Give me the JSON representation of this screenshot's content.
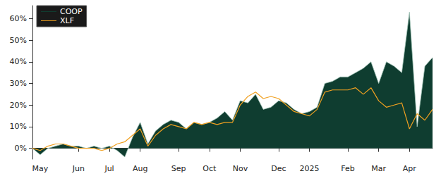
{
  "chart_data": {
    "type": "line",
    "categories": [
      null,
      "May",
      null,
      null,
      null,
      null,
      "Jun",
      null,
      null,
      null,
      "Jul",
      null,
      null,
      null,
      "Aug",
      null,
      null,
      null,
      null,
      "Sep",
      null,
      null,
      null,
      "Oct",
      null,
      null,
      null,
      "Nov",
      null,
      null,
      null,
      null,
      "Dec",
      null,
      null,
      null,
      "2025",
      null,
      null,
      null,
      null,
      "Feb",
      null,
      null,
      null,
      "Mar",
      null,
      null,
      null,
      "Apr",
      null,
      null,
      null
    ],
    "series": [
      {
        "name": "COOP",
        "color": "#0f3d30",
        "type": "area",
        "values": [
          0,
          -3,
          0,
          1,
          2,
          1,
          1,
          0,
          1,
          0,
          1,
          -1,
          -4,
          5,
          12,
          2,
          8,
          11,
          13,
          12,
          9,
          12,
          11,
          12,
          14,
          17,
          13,
          22,
          21,
          25,
          18,
          19,
          22,
          21,
          18,
          16,
          17,
          19,
          30,
          31,
          33,
          33,
          35,
          37,
          40,
          30,
          40,
          38,
          35,
          63,
          10,
          38,
          42
        ]
      },
      {
        "name": "XLF",
        "color": "#f0a020",
        "type": "line",
        "values": [
          0,
          -1,
          1,
          2,
          2,
          1,
          0,
          0,
          0,
          -1,
          0,
          2,
          3,
          6,
          9,
          1,
          6,
          9,
          11,
          10,
          9,
          12,
          11,
          12,
          11,
          12,
          12,
          20,
          24,
          26,
          23,
          24,
          23,
          20,
          17,
          16,
          15,
          18,
          26,
          27,
          27,
          27,
          28,
          25,
          28,
          22,
          19,
          20,
          21,
          9,
          16,
          13,
          18
        ]
      }
    ],
    "ylim": [
      -5,
      66
    ],
    "yticks": [
      {
        "value": 0,
        "label": "0%"
      },
      {
        "value": 10,
        "label": "10%"
      },
      {
        "value": 20,
        "label": "20%"
      },
      {
        "value": 30,
        "label": "30%"
      },
      {
        "value": 40,
        "label": "40%"
      },
      {
        "value": 50,
        "label": "50%"
      },
      {
        "value": 60,
        "label": "60%"
      }
    ],
    "grid": false,
    "legend": "upper left"
  }
}
